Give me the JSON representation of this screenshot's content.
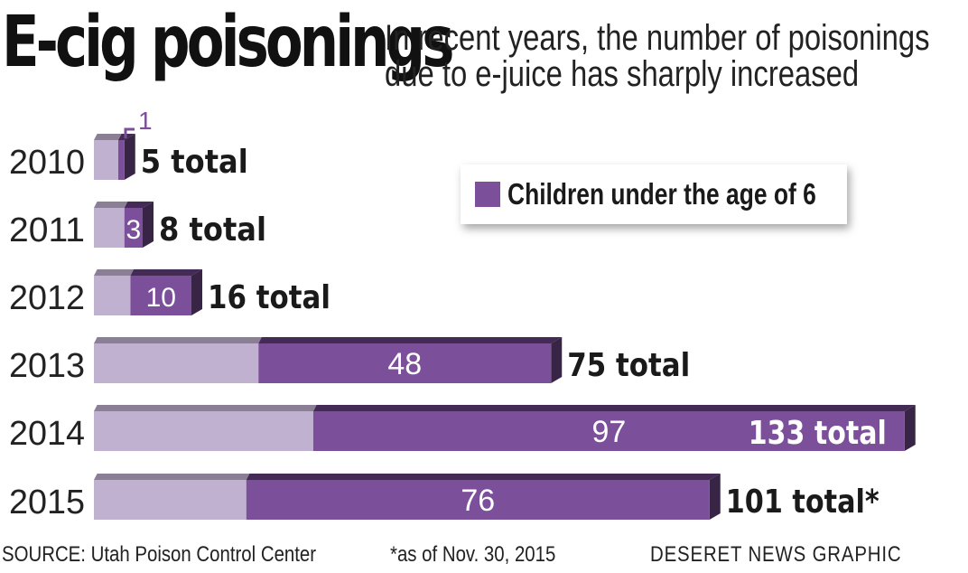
{
  "headline": "E-cig poisonings",
  "subhead": {
    "line1": "In recent years, the number of poisonings",
    "line2": "due to e-juice has sharply increased"
  },
  "legend": {
    "label": "Children under the age of 6",
    "color": "#7c4f9a"
  },
  "footer": {
    "source": "SOURCE: Utah Poison Control Center",
    "footnote": "*as of Nov. 30, 2015",
    "credit": "DESERET NEWS GRAPHIC"
  },
  "colors": {
    "total_bar": "#bfb1cf",
    "children_bar": "#7c4f9a"
  },
  "chart_data": {
    "type": "bar",
    "orientation": "horizontal",
    "stacked": true,
    "categories": [
      "2010",
      "2011",
      "2012",
      "2013",
      "2014",
      "2015"
    ],
    "series": [
      {
        "name": "Children under the age of 6",
        "values": [
          1,
          3,
          10,
          48,
          97,
          76
        ]
      }
    ],
    "totals": [
      5,
      8,
      16,
      75,
      133,
      101
    ],
    "total_labels": [
      "5 total",
      "8 total",
      "16 total",
      "75 total",
      "133 total",
      "101 total*"
    ],
    "child_labels": [
      "1",
      "3",
      "10",
      "48",
      "97",
      "76"
    ],
    "xlim": [
      0,
      133
    ],
    "grid": false,
    "legend_position": "upper-right"
  }
}
